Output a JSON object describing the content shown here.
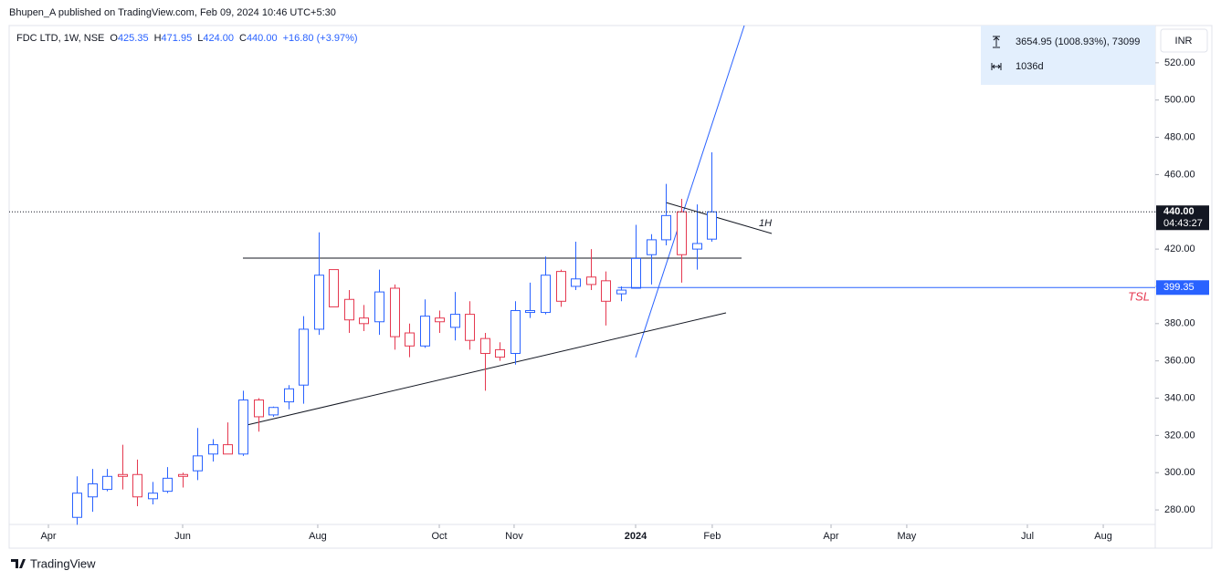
{
  "header": {
    "publisher": "Bhupen_A published on TradingView.com, Feb 09, 2024 10:46 UTC+5:30",
    "footer": "TradingView"
  },
  "chart_data": {
    "type": "candlestick",
    "legend": {
      "symbol": "FDC LTD, 1W, NSE",
      "items": [
        {
          "key": "O",
          "text": "425.35"
        },
        {
          "key": "H",
          "text": "471.95"
        },
        {
          "key": "L",
          "text": "424.00"
        },
        {
          "key": "C",
          "text": "440.00"
        }
      ],
      "change": "+16.80 (+3.97%)"
    },
    "measure": {
      "range": "3654.95 (1008.93%), 73099",
      "span": "1036d"
    },
    "currency": "INR",
    "up_color": "#2962ff",
    "down_color": "#e53950",
    "ohlc": {
      "open": [
        276,
        287,
        291,
        299,
        299,
        286,
        290,
        299,
        301,
        310,
        315,
        310,
        339,
        331,
        338,
        347,
        377,
        409,
        393,
        383,
        381,
        399,
        375,
        368,
        383,
        378,
        385,
        372,
        366,
        364,
        386,
        386,
        408,
        400,
        405,
        403,
        396,
        399,
        417,
        425,
        440,
        420,
        425.35
      ],
      "high": [
        298,
        302,
        302,
        315,
        307,
        295,
        303,
        300,
        324,
        318,
        327,
        344,
        340,
        335.5,
        347,
        384,
        429,
        409,
        398,
        390,
        409,
        401,
        380,
        393,
        387,
        397,
        392,
        375,
        370,
        392,
        402,
        416,
        409,
        424,
        420,
        408,
        400,
        433,
        428,
        455,
        447,
        444,
        471.95
      ],
      "low": [
        272,
        279,
        290,
        291,
        282,
        283,
        289,
        292,
        296,
        306,
        310,
        309,
        322,
        330,
        334,
        337,
        374,
        389,
        375,
        376,
        374,
        366,
        362,
        367,
        375,
        371,
        366,
        344,
        360,
        358,
        383,
        385,
        389,
        398,
        398,
        379,
        392,
        399,
        401,
        422,
        402,
        409,
        424
      ],
      "close": [
        289,
        294,
        298,
        298,
        287,
        289,
        297,
        298,
        309,
        315,
        310,
        339,
        330,
        335,
        345,
        377,
        406,
        389,
        382,
        380,
        397,
        373,
        368,
        384,
        381,
        385,
        371,
        364,
        362,
        387,
        387,
        406,
        392,
        404,
        401,
        392,
        398,
        415,
        425,
        438,
        417,
        423,
        440
      ]
    },
    "xlim": [
      -4.47,
      71.36
    ],
    "xticks": [
      {
        "value": -1.87,
        "label": "Apr"
      },
      {
        "value": 7.01,
        "label": "Jun"
      },
      {
        "value": 15.95,
        "label": "Aug"
      },
      {
        "value": 23.99,
        "label": "Oct"
      },
      {
        "value": 28.94,
        "label": "Nov"
      },
      {
        "value": 36.98,
        "label": "2024"
      },
      {
        "value": 42.05,
        "label": "Feb"
      },
      {
        "value": 49.91,
        "label": "Apr"
      },
      {
        "value": 54.92,
        "label": "May"
      },
      {
        "value": 62.9,
        "label": "Jul"
      },
      {
        "value": 67.92,
        "label": "Aug"
      }
    ],
    "ylim": [
      272.2,
      540
    ],
    "yticks": [
      {
        "value": 280,
        "label": "280.00"
      },
      {
        "value": 300,
        "label": "300.00"
      },
      {
        "value": 320,
        "label": "320.00"
      },
      {
        "value": 340,
        "label": "340.00"
      },
      {
        "value": 360,
        "label": "360.00"
      },
      {
        "value": 380,
        "label": "380.00"
      },
      {
        "value": 400,
        "label": "400.00"
      },
      {
        "value": 420,
        "label": "420.00"
      },
      {
        "value": 440,
        "label": "440.00"
      },
      {
        "value": 460,
        "label": "460.00"
      },
      {
        "value": 480,
        "label": "480.00"
      },
      {
        "value": 500,
        "label": "500.00"
      },
      {
        "value": 520,
        "label": "520.00"
      }
    ],
    "last_price": {
      "value": 440,
      "label": "440.00",
      "countdown": "04:43:27"
    },
    "tsl": {
      "value": 399.35,
      "name": "TSL"
    },
    "annotation": "1H"
  }
}
